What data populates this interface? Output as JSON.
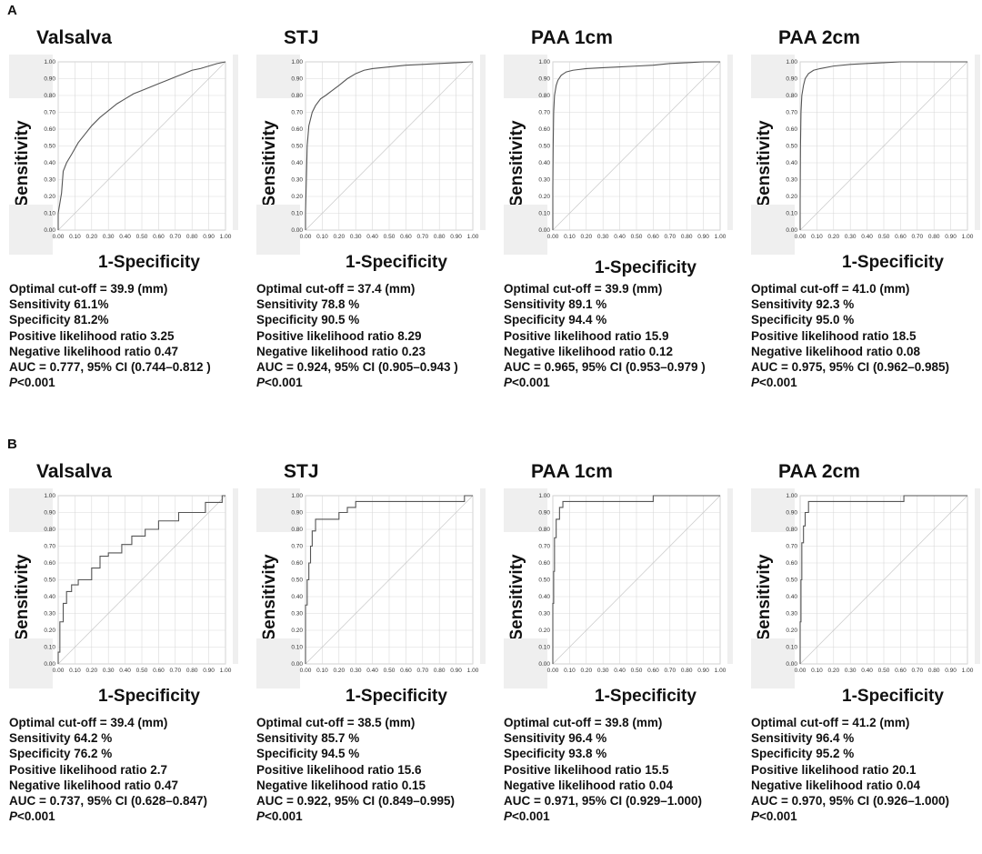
{
  "sections": [
    {
      "label": "A",
      "panels": [
        {
          "title": "Valsalva",
          "ylabel": "Sensitivity",
          "xlabel": "1-Specificity",
          "stats": [
            "Optimal cut-off = 39.9 (mm)",
            "Sensitivity 61.1%",
            "Specificity 81.2%",
            "Positive likelihood ratio 3.25",
            "Negative likelihood ratio 0.47",
            "AUC = 0.777, 95% CI (0.744–0.812 )"
          ],
          "p_italic": "P",
          "p_rest": "<0.001"
        },
        {
          "title": "STJ",
          "ylabel": "Sensitivity",
          "xlabel": "1-Specificity",
          "stats": [
            "Optimal cut-off = 37.4 (mm)",
            "Sensitivity 78.8 %",
            "Specificity 90.5 %",
            "Positive likelihood ratio 8.29",
            "Negative likelihood ratio 0.23",
            "AUC = 0.924, 95% CI (0.905–0.943 )"
          ],
          "p_italic": "P",
          "p_rest": "<0.001"
        },
        {
          "title": "PAA 1cm",
          "ylabel": "Sensitivity",
          "xlabel": "1-Specificity",
          "stats": [
            "Optimal cut-off = 39.9 (mm)",
            "Sensitivity 89.1 %",
            "Specificity 94.4 %",
            "Positive likelihood ratio 15.9",
            "Negative likelihood ratio 0.12",
            "AUC = 0.965, 95% CI (0.953–0.979 )"
          ],
          "p_italic": "P",
          "p_rest": "<0.001"
        },
        {
          "title": "PAA 2cm",
          "ylabel": "Sensitivity",
          "xlabel": "1-Specificity",
          "stats": [
            "Optimal cut-off = 41.0 (mm)",
            "Sensitivity 92.3 %",
            "Specificity 95.0 %",
            "Positive likelihood ratio 18.5",
            "Negative likelihood ratio 0.08",
            "AUC = 0.975, 95% CI (0.962–0.985)"
          ],
          "p_italic": "P",
          "p_rest": "<0.001"
        }
      ]
    },
    {
      "label": "B",
      "panels": [
        {
          "title": "Valsalva",
          "ylabel": "Sensitivity",
          "xlabel": "1-Specificity",
          "stats": [
            "Optimal cut-off = 39.4 (mm)",
            "Sensitivity 64.2 %",
            "Specificity 76.2 %",
            "Positive likelihood ratio 2.7",
            "Negative likelihood ratio 0.47",
            "AUC = 0.737, 95% CI (0.628–0.847)"
          ],
          "p_italic": "P",
          "p_rest": "<0.001"
        },
        {
          "title": "STJ",
          "ylabel": "Sensitivity",
          "xlabel": "1-Specificity",
          "stats": [
            "Optimal cut-off =  38.5 (mm)",
            "Sensitivity  85.7 %",
            "Specificity  94.5 %",
            "Positive likelihood ratio 15.6",
            "Negative likelihood ratio 0.15",
            "AUC = 0.922, 95% CI (0.849–0.995)"
          ],
          "p_italic": "P",
          "p_rest": "<0.001"
        },
        {
          "title": "PAA 1cm",
          "ylabel": "Sensitivity",
          "xlabel": "1-Specificity",
          "stats": [
            "Optimal cut-off = 39.8 (mm)",
            "Sensitivity 96.4 %",
            "Specificity 93.8 %",
            "Positive likelihood ratio 15.5",
            "Negative likelihood ratio 0.04",
            "AUC = 0.971, 95% CI (0.929–1.000)"
          ],
          "p_italic": "P",
          "p_rest": "<0.001"
        },
        {
          "title": "PAA 2cm",
          "ylabel": "Sensitivity",
          "xlabel": "1-Specificity",
          "stats": [
            "Optimal cut-off = 41.2 (mm)",
            "Sensitivity 96.4 %",
            "Specificity 95.2 %",
            "Positive likelihood ratio 20.1",
            "Negative likelihood ratio 0.04",
            "AUC = 0.970, 95% CI (0.926–1.000)"
          ],
          "p_italic": "P",
          "p_rest": "<0.001"
        }
      ]
    }
  ],
  "chart_data": [
    {
      "type": "line",
      "panel": "A-Valsalva",
      "xlim": [
        0,
        1
      ],
      "ylim": [
        0,
        1
      ],
      "xticks": [
        "0.00",
        "0.10",
        "0.20",
        "0.30",
        "0.40",
        "0.50",
        "0.60",
        "0.70",
        "0.80",
        "0.90",
        "1.00"
      ],
      "yticks": [
        "0.00",
        "0.10",
        "0.20",
        "0.30",
        "0.40",
        "0.50",
        "0.60",
        "0.70",
        "0.80",
        "0.90",
        "1.00"
      ],
      "grid": true,
      "diagonal": true,
      "x": [
        0,
        0,
        0.02,
        0.03,
        0.05,
        0.08,
        0.12,
        0.16,
        0.2,
        0.25,
        0.3,
        0.35,
        0.4,
        0.45,
        0.5,
        0.55,
        0.6,
        0.65,
        0.7,
        0.75,
        0.8,
        0.85,
        0.9,
        0.95,
        1
      ],
      "y": [
        0,
        0.1,
        0.22,
        0.35,
        0.4,
        0.45,
        0.52,
        0.57,
        0.62,
        0.67,
        0.71,
        0.75,
        0.78,
        0.81,
        0.83,
        0.85,
        0.87,
        0.89,
        0.91,
        0.93,
        0.95,
        0.96,
        0.975,
        0.99,
        1
      ]
    },
    {
      "type": "line",
      "panel": "A-STJ",
      "xlim": [
        0,
        1
      ],
      "ylim": [
        0,
        1
      ],
      "xticks": [
        "0.00",
        "0.10",
        "0.20",
        "0.30",
        "0.40",
        "0.50",
        "0.60",
        "0.70",
        "0.80",
        "0.90",
        "1.00"
      ],
      "yticks": [
        "0.00",
        "0.10",
        "0.20",
        "0.30",
        "0.40",
        "0.50",
        "0.60",
        "0.70",
        "0.80",
        "0.90",
        "1.00"
      ],
      "grid": true,
      "diagonal": true,
      "x": [
        0,
        0,
        0.005,
        0.01,
        0.02,
        0.04,
        0.06,
        0.09,
        0.12,
        0.16,
        0.2,
        0.25,
        0.3,
        0.35,
        0.4,
        0.5,
        0.6,
        0.7,
        0.8,
        0.9,
        1
      ],
      "y": [
        0,
        0.1,
        0.3,
        0.5,
        0.62,
        0.7,
        0.74,
        0.78,
        0.8,
        0.83,
        0.86,
        0.9,
        0.93,
        0.95,
        0.96,
        0.97,
        0.98,
        0.985,
        0.99,
        0.995,
        1
      ]
    },
    {
      "type": "line",
      "panel": "A-PAA 1cm",
      "xlim": [
        0,
        1
      ],
      "ylim": [
        0,
        1
      ],
      "xticks": [
        "0.00",
        "0.10",
        "0.20",
        "0.30",
        "0.40",
        "0.50",
        "0.60",
        "0.70",
        "0.80",
        "0.90",
        "1.00"
      ],
      "yticks": [
        "0.00",
        "0.10",
        "0.20",
        "0.30",
        "0.40",
        "0.50",
        "0.60",
        "0.70",
        "0.80",
        "0.90",
        "1.00"
      ],
      "grid": true,
      "diagonal": true,
      "x": [
        0,
        0,
        0.002,
        0.005,
        0.01,
        0.02,
        0.03,
        0.05,
        0.08,
        0.12,
        0.2,
        0.3,
        0.4,
        0.5,
        0.6,
        0.7,
        0.8,
        0.9,
        1
      ],
      "y": [
        0,
        0.25,
        0.5,
        0.7,
        0.8,
        0.86,
        0.89,
        0.92,
        0.94,
        0.95,
        0.96,
        0.965,
        0.97,
        0.975,
        0.98,
        0.99,
        0.995,
        1,
        1
      ]
    },
    {
      "type": "line",
      "panel": "A-PAA 2cm",
      "xlim": [
        0,
        1
      ],
      "ylim": [
        0,
        1
      ],
      "xticks": [
        "0.00",
        "0.10",
        "0.20",
        "0.30",
        "0.40",
        "0.50",
        "0.60",
        "0.70",
        "0.80",
        "0.90",
        "1.00"
      ],
      "yticks": [
        "0.00",
        "0.10",
        "0.20",
        "0.30",
        "0.40",
        "0.50",
        "0.60",
        "0.70",
        "0.80",
        "0.90",
        "1.00"
      ],
      "grid": true,
      "diagonal": true,
      "x": [
        0,
        0,
        0.002,
        0.005,
        0.01,
        0.02,
        0.03,
        0.05,
        0.08,
        0.12,
        0.2,
        0.3,
        0.4,
        0.5,
        0.6,
        0.8,
        1
      ],
      "y": [
        0,
        0.18,
        0.5,
        0.7,
        0.8,
        0.86,
        0.9,
        0.93,
        0.95,
        0.96,
        0.975,
        0.985,
        0.99,
        0.995,
        1,
        1,
        1
      ]
    },
    {
      "type": "line",
      "panel": "B-Valsalva",
      "xlim": [
        0,
        1
      ],
      "ylim": [
        0,
        1
      ],
      "xticks": [
        "0.00",
        "0.10",
        "0.20",
        "0.30",
        "0.40",
        "0.50",
        "0.60",
        "0.70",
        "0.80",
        "0.90",
        "1.00"
      ],
      "yticks": [
        "0.00",
        "0.10",
        "0.20",
        "0.30",
        "0.40",
        "0.50",
        "0.60",
        "0.70",
        "0.80",
        "0.90",
        "1.00"
      ],
      "grid": true,
      "diagonal": true,
      "x": [
        0,
        0,
        0.01,
        0.01,
        0.03,
        0.03,
        0.05,
        0.05,
        0.08,
        0.08,
        0.12,
        0.12,
        0.2,
        0.2,
        0.25,
        0.25,
        0.3,
        0.3,
        0.38,
        0.38,
        0.44,
        0.44,
        0.52,
        0.52,
        0.6,
        0.6,
        0.72,
        0.72,
        0.88,
        0.88,
        0.98,
        0.98,
        1
      ],
      "y": [
        0,
        0.07,
        0.07,
        0.25,
        0.25,
        0.36,
        0.36,
        0.43,
        0.43,
        0.47,
        0.47,
        0.5,
        0.5,
        0.57,
        0.57,
        0.64,
        0.64,
        0.66,
        0.66,
        0.71,
        0.71,
        0.76,
        0.76,
        0.8,
        0.8,
        0.85,
        0.85,
        0.9,
        0.9,
        0.96,
        0.96,
        1,
        1
      ]
    },
    {
      "type": "line",
      "panel": "B-STJ",
      "xlim": [
        0,
        1
      ],
      "ylim": [
        0,
        1
      ],
      "xticks": [
        "0.00",
        "0.10",
        "0.20",
        "0.30",
        "0.40",
        "0.50",
        "0.60",
        "0.70",
        "0.80",
        "0.90",
        "1.00"
      ],
      "yticks": [
        "0.00",
        "0.10",
        "0.20",
        "0.30",
        "0.40",
        "0.50",
        "0.60",
        "0.70",
        "0.80",
        "0.90",
        "1.00"
      ],
      "grid": true,
      "diagonal": true,
      "x": [
        0,
        0,
        0.01,
        0.01,
        0.02,
        0.02,
        0.03,
        0.03,
        0.04,
        0.04,
        0.06,
        0.06,
        0.2,
        0.2,
        0.25,
        0.25,
        0.3,
        0.3,
        0.95,
        0.95,
        1
      ],
      "y": [
        0,
        0.35,
        0.35,
        0.5,
        0.5,
        0.6,
        0.6,
        0.7,
        0.7,
        0.79,
        0.79,
        0.86,
        0.86,
        0.9,
        0.9,
        0.93,
        0.93,
        0.965,
        0.965,
        1,
        1
      ]
    },
    {
      "type": "line",
      "panel": "B-PAA 1cm",
      "xlim": [
        0,
        1
      ],
      "ylim": [
        0,
        1
      ],
      "xticks": [
        "0.00",
        "0.10",
        "0.20",
        "0.30",
        "0.40",
        "0.50",
        "0.60",
        "0.70",
        "0.80",
        "0.90",
        "1.00"
      ],
      "yticks": [
        "0.00",
        "0.10",
        "0.20",
        "0.30",
        "0.40",
        "0.50",
        "0.60",
        "0.70",
        "0.80",
        "0.90",
        "1.00"
      ],
      "grid": true,
      "diagonal": true,
      "x": [
        0,
        0,
        0.005,
        0.005,
        0.01,
        0.01,
        0.02,
        0.02,
        0.04,
        0.04,
        0.06,
        0.06,
        0.6,
        0.6,
        1
      ],
      "y": [
        0,
        0.36,
        0.36,
        0.55,
        0.55,
        0.75,
        0.75,
        0.86,
        0.86,
        0.93,
        0.93,
        0.965,
        0.965,
        1,
        1
      ]
    },
    {
      "type": "line",
      "panel": "B-PAA 2cm",
      "xlim": [
        0,
        1
      ],
      "ylim": [
        0,
        1
      ],
      "xticks": [
        "0.00",
        "0.10",
        "0.20",
        "0.30",
        "0.40",
        "0.50",
        "0.60",
        "0.70",
        "0.80",
        "0.90",
        "1.00"
      ],
      "yticks": [
        "0.00",
        "0.10",
        "0.20",
        "0.30",
        "0.40",
        "0.50",
        "0.60",
        "0.70",
        "0.80",
        "0.90",
        "1.00"
      ],
      "grid": true,
      "diagonal": true,
      "x": [
        0,
        0,
        0.005,
        0.005,
        0.01,
        0.01,
        0.02,
        0.02,
        0.03,
        0.03,
        0.05,
        0.05,
        0.62,
        0.62,
        1
      ],
      "y": [
        0,
        0.25,
        0.25,
        0.5,
        0.5,
        0.72,
        0.72,
        0.82,
        0.82,
        0.9,
        0.9,
        0.965,
        0.965,
        1,
        1
      ]
    }
  ]
}
